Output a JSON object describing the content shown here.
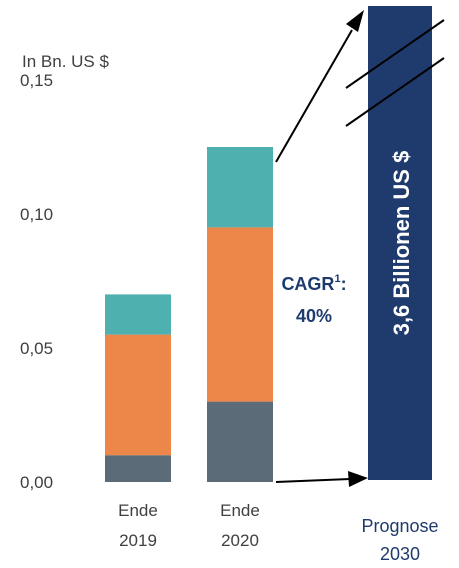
{
  "chart_data": {
    "type": "bar",
    "stacked": true,
    "unit_label": "In Bn. US $",
    "y_ticks": [
      "0,15",
      "0,10",
      "0,05",
      "0,00"
    ],
    "ylim": [
      0,
      0.15
    ],
    "categories": [
      {
        "line1": "Ende",
        "line2": "2019"
      },
      {
        "line1": "Ende",
        "line2": "2020"
      }
    ],
    "series": [
      {
        "color": "#5b6b78",
        "values": [
          0.01,
          0.03
        ]
      },
      {
        "color": "#ed8749",
        "values": [
          0.045,
          0.065
        ]
      },
      {
        "color": "#4fb0b0",
        "values": [
          0.015,
          0.03
        ]
      }
    ],
    "cagr": {
      "label": "CAGR",
      "superscript": "1",
      "suffix": ":",
      "value": "40%"
    },
    "forecast": {
      "value_text": "3,6 Billionen US $",
      "label_line1": "Prognose",
      "label_line2": "2030",
      "color": "#1f3b6e"
    }
  }
}
